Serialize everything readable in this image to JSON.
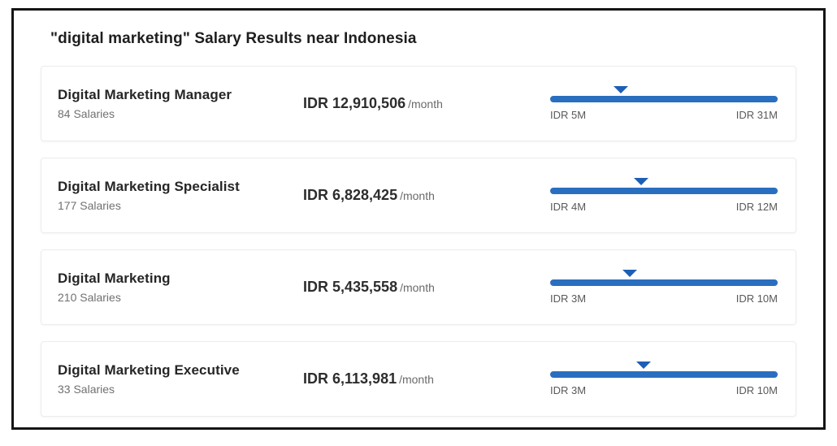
{
  "page": {
    "title": "\"digital marketing\" Salary Results near Indonesia"
  },
  "colors": {
    "bar": "#2a6ebf",
    "marker": "#1d5fb4"
  },
  "rows": [
    {
      "title": "Digital Marketing Manager",
      "salaries": "84 Salaries",
      "amount": "IDR 12,910,506",
      "period": "/month",
      "range_min": "IDR 5M",
      "range_max": "IDR 31M",
      "marker_percent": 31
    },
    {
      "title": "Digital Marketing Specialist",
      "salaries": "177 Salaries",
      "amount": "IDR 6,828,425",
      "period": "/month",
      "range_min": "IDR 4M",
      "range_max": "IDR 12M",
      "marker_percent": 40
    },
    {
      "title": "Digital Marketing",
      "salaries": "210 Salaries",
      "amount": "IDR 5,435,558",
      "period": "/month",
      "range_min": "IDR 3M",
      "range_max": "IDR 10M",
      "marker_percent": 35
    },
    {
      "title": "Digital Marketing Executive",
      "salaries": "33 Salaries",
      "amount": "IDR 6,113,981",
      "period": "/month",
      "range_min": "IDR 3M",
      "range_max": "IDR 10M",
      "marker_percent": 41
    }
  ]
}
